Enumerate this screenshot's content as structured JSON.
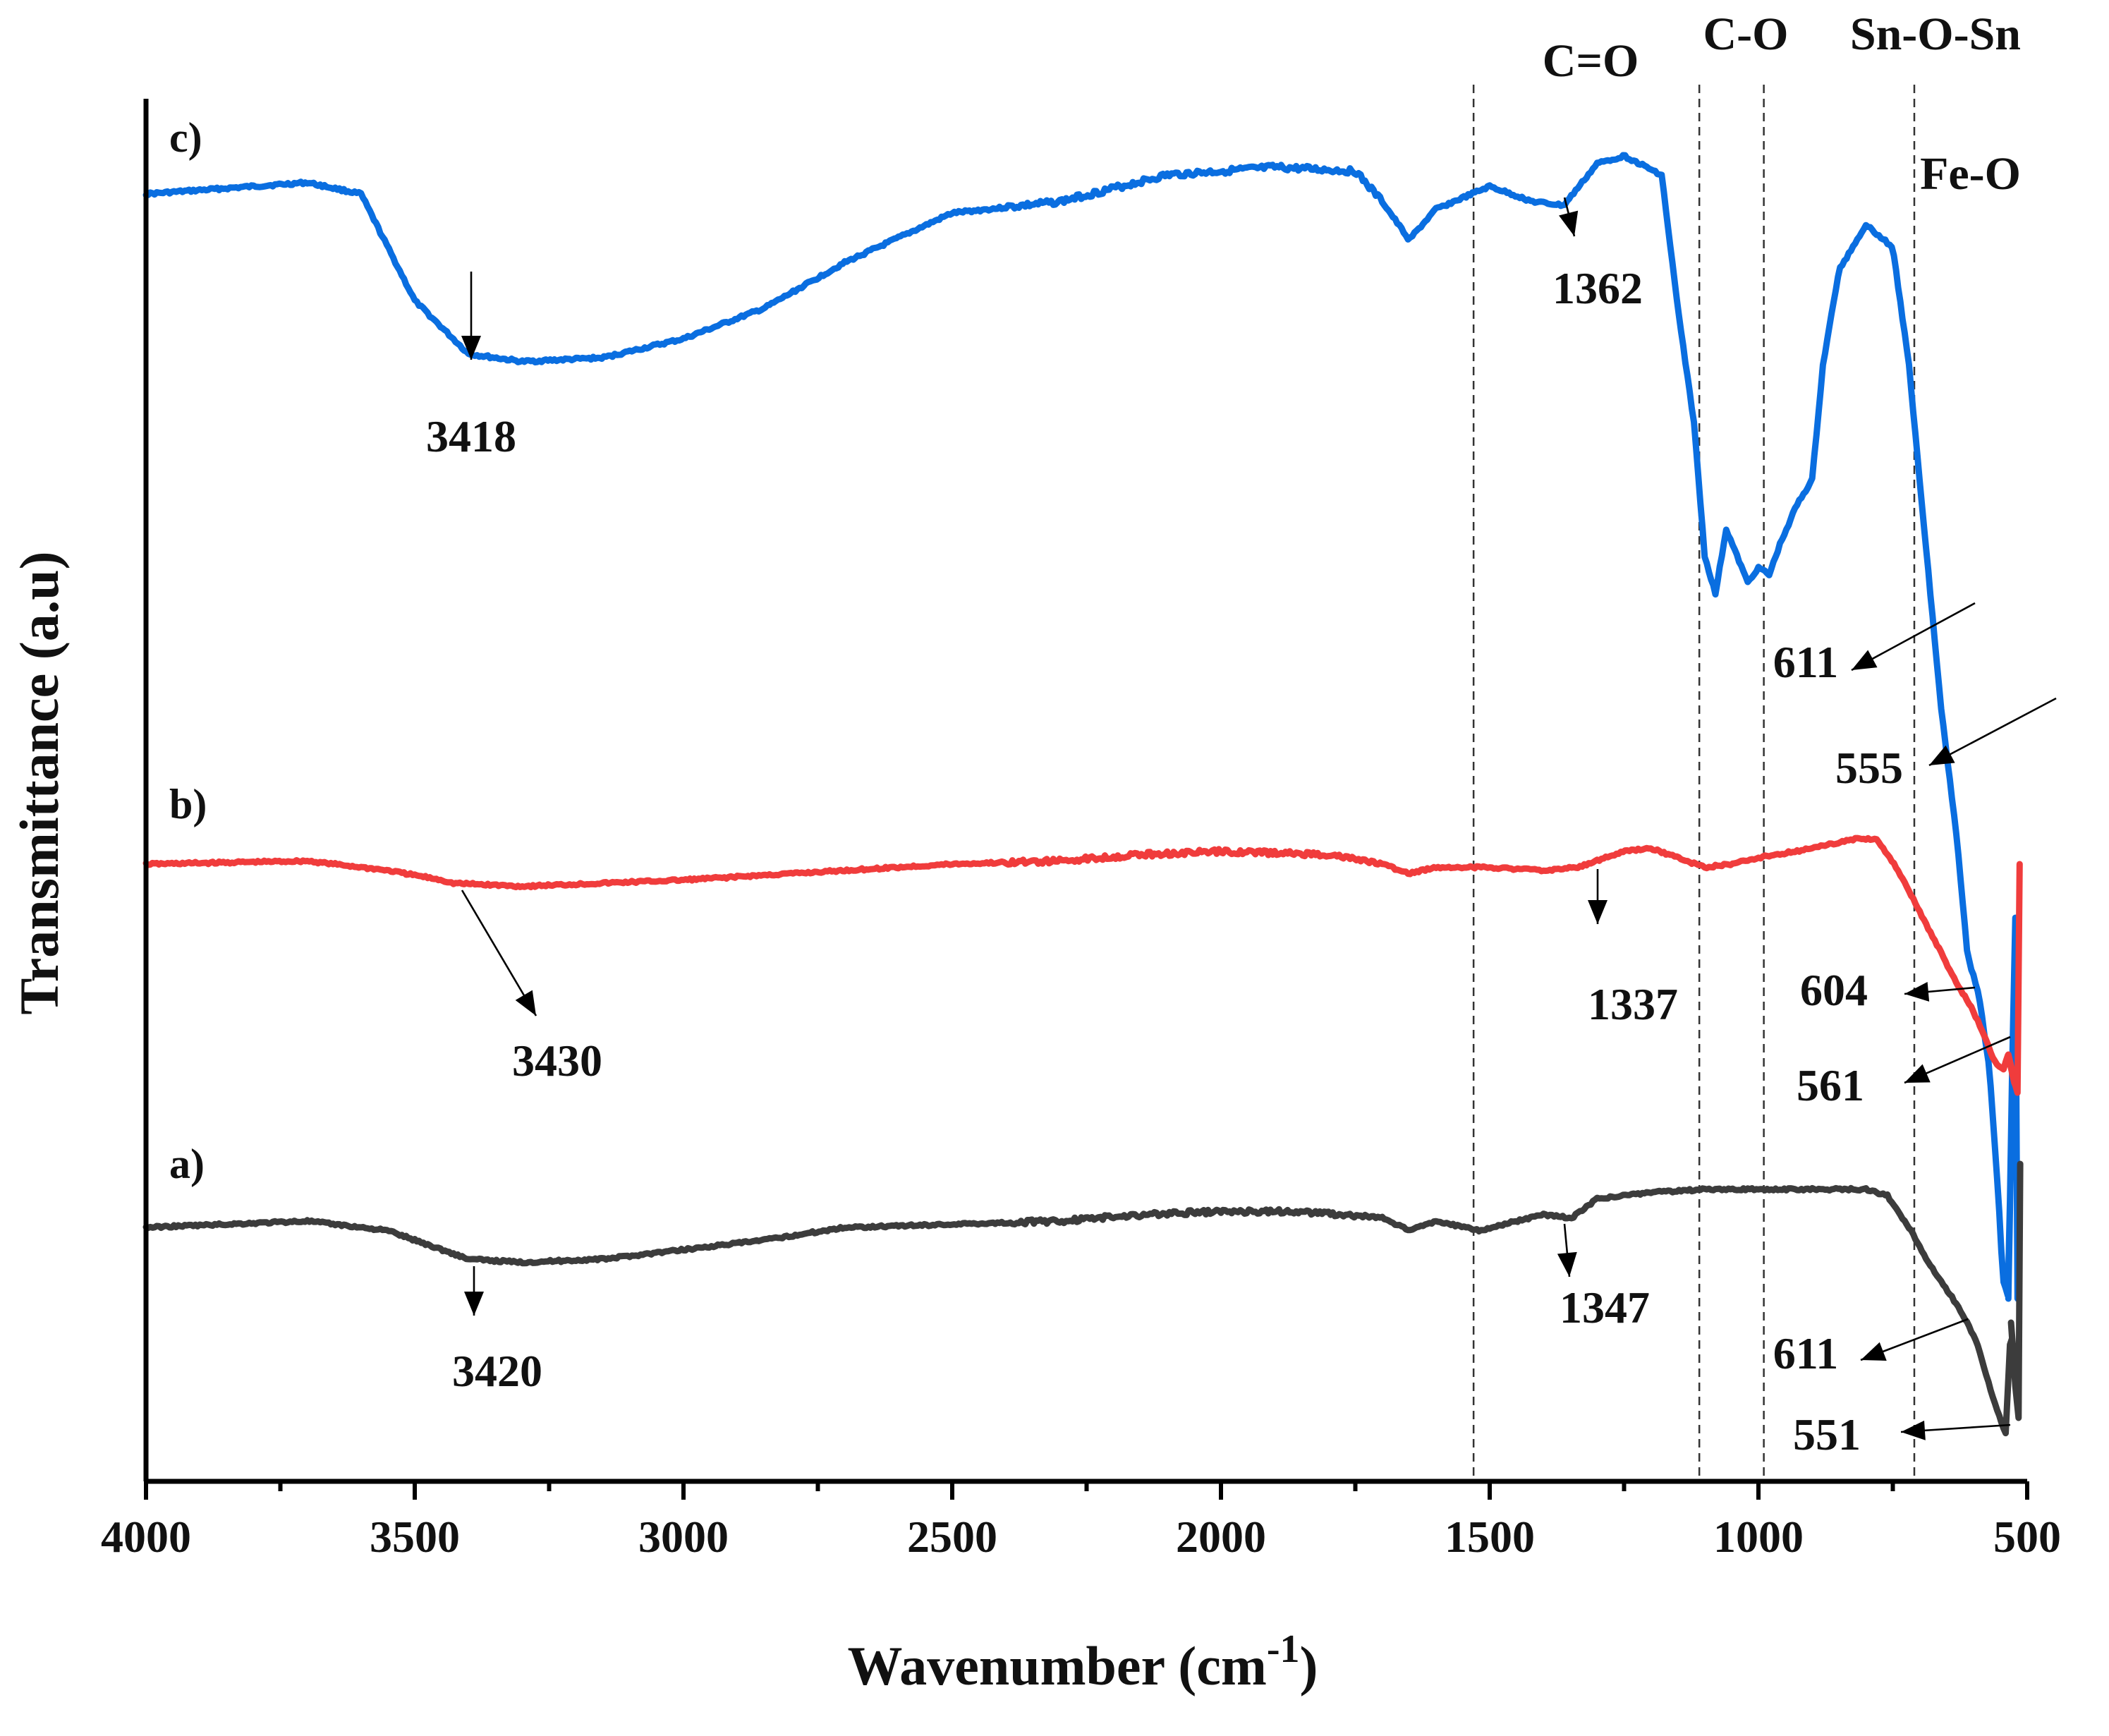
{
  "chart_data": {
    "type": "line",
    "xlabel": "Wavenumber (cm",
    "xlabel_sup": "-1",
    "xlabel_close": ")",
    "ylabel": "Transmittance (a.u)",
    "xlim": [
      4000,
      500
    ],
    "x_ticks": [
      "4000",
      "3500",
      "3000",
      "2500",
      "2000",
      "1500",
      "1000",
      "500"
    ],
    "x_tick_values": [
      4000,
      3500,
      3000,
      2500,
      2000,
      1500,
      1000,
      500
    ],
    "reference_lines": [
      {
        "x": 1530
      },
      {
        "x": 1110
      },
      {
        "x": 990
      },
      {
        "x": 710
      }
    ],
    "bands": [
      {
        "label": "C=O",
        "x": 1300
      },
      {
        "label": "C-O",
        "x": 1050
      },
      {
        "label": "Sn-O-Sn",
        "x": 600
      },
      {
        "label": "Fe-O",
        "x": 600
      }
    ],
    "series": [
      {
        "name": "c)",
        "color": "#0a6ee0",
        "offset": 2,
        "points": [
          [
            4000,
            0
          ],
          [
            3700,
            -0.03
          ],
          [
            3600,
            0
          ],
          [
            3500,
            0.28
          ],
          [
            3400,
            0.42
          ],
          [
            3300,
            0.44
          ],
          [
            3150,
            0.43
          ],
          [
            3000,
            0.38
          ],
          [
            2850,
            0.3
          ],
          [
            2700,
            0.18
          ],
          [
            2500,
            0.05
          ],
          [
            2300,
            0.02
          ],
          [
            2100,
            -0.05
          ],
          [
            1900,
            -0.07
          ],
          [
            1750,
            -0.06
          ],
          [
            1700,
            0.02
          ],
          [
            1650,
            0.12
          ],
          [
            1600,
            0.04
          ],
          [
            1500,
            -0.02
          ],
          [
            1420,
            0.02
          ],
          [
            1362,
            0.03
          ],
          [
            1300,
            -0.08
          ],
          [
            1250,
            -0.1
          ],
          [
            1180,
            -0.05
          ],
          [
            1150,
            0.3
          ],
          [
            1120,
            0.6
          ],
          [
            1100,
            0.95
          ],
          [
            1080,
            1.05
          ],
          [
            1060,
            0.88
          ],
          [
            1040,
            0.95
          ],
          [
            1020,
            1.02
          ],
          [
            1000,
            0.98
          ],
          [
            980,
            1.0
          ],
          [
            960,
            0.92
          ],
          [
            930,
            0.82
          ],
          [
            900,
            0.75
          ],
          [
            880,
            0.45
          ],
          [
            850,
            0.2
          ],
          [
            800,
            0.08
          ],
          [
            750,
            0.14
          ],
          [
            720,
            0.45
          ],
          [
            690,
            0.9
          ],
          [
            660,
            1.35
          ],
          [
            630,
            1.7
          ],
          [
            611,
            2.0
          ],
          [
            590,
            2.1
          ],
          [
            570,
            2.3
          ],
          [
            555,
            2.6
          ],
          [
            545,
            2.85
          ],
          [
            535,
            2.9
          ],
          [
            528,
            2.3
          ],
          [
            522,
            1.9
          ],
          [
            518,
            2.9
          ]
        ]
      },
      {
        "name": "b)",
        "color": "#f03c3c",
        "offset": 1,
        "points": [
          [
            4000,
            0
          ],
          [
            3700,
            -0.01
          ],
          [
            3550,
            0.02
          ],
          [
            3450,
            0.05
          ],
          [
            3430,
            0.06
          ],
          [
            3300,
            0.07
          ],
          [
            3000,
            0.05
          ],
          [
            2700,
            0.02
          ],
          [
            2500,
            0.0
          ],
          [
            2300,
            -0.01
          ],
          [
            2150,
            -0.03
          ],
          [
            2000,
            -0.04
          ],
          [
            1800,
            -0.03
          ],
          [
            1700,
            0.0
          ],
          [
            1650,
            0.03
          ],
          [
            1600,
            0.01
          ],
          [
            1500,
            0.01
          ],
          [
            1400,
            0.02
          ],
          [
            1337,
            0.01
          ],
          [
            1250,
            -0.04
          ],
          [
            1200,
            -0.05
          ],
          [
            1100,
            0.01
          ],
          [
            1050,
            0.0
          ],
          [
            1000,
            -0.02
          ],
          [
            900,
            -0.05
          ],
          [
            820,
            -0.08
          ],
          [
            780,
            -0.08
          ],
          [
            740,
            0.02
          ],
          [
            700,
            0.15
          ],
          [
            660,
            0.28
          ],
          [
            630,
            0.38
          ],
          [
            604,
            0.45
          ],
          [
            585,
            0.52
          ],
          [
            561,
            0.62
          ],
          [
            545,
            0.65
          ],
          [
            535,
            0.6
          ],
          [
            525,
            0.68
          ],
          [
            518,
            0.72
          ],
          [
            514,
            0.0
          ]
        ]
      },
      {
        "name": "a)",
        "color": "#3c3c3c",
        "offset": 0,
        "points": [
          [
            4000,
            0
          ],
          [
            3700,
            -0.02
          ],
          [
            3550,
            0.01
          ],
          [
            3450,
            0.07
          ],
          [
            3400,
            0.1
          ],
          [
            3300,
            0.11
          ],
          [
            3150,
            0.1
          ],
          [
            3000,
            0.07
          ],
          [
            2850,
            0.04
          ],
          [
            2700,
            0.0
          ],
          [
            2500,
            -0.01
          ],
          [
            2300,
            -0.02
          ],
          [
            2150,
            -0.04
          ],
          [
            2000,
            -0.05
          ],
          [
            1850,
            -0.05
          ],
          [
            1700,
            -0.03
          ],
          [
            1650,
            0.01
          ],
          [
            1600,
            -0.02
          ],
          [
            1520,
            0.01
          ],
          [
            1450,
            -0.02
          ],
          [
            1400,
            -0.04
          ],
          [
            1347,
            -0.03
          ],
          [
            1300,
            -0.09
          ],
          [
            1200,
            -0.11
          ],
          [
            1100,
            -0.12
          ],
          [
            1000,
            -0.12
          ],
          [
            900,
            -0.12
          ],
          [
            800,
            -0.12
          ],
          [
            760,
            -0.1
          ],
          [
            720,
            0.0
          ],
          [
            680,
            0.12
          ],
          [
            640,
            0.22
          ],
          [
            611,
            0.3
          ],
          [
            590,
            0.38
          ],
          [
            570,
            0.5
          ],
          [
            551,
            0.6
          ],
          [
            540,
            0.65
          ],
          [
            530,
            0.3
          ],
          [
            522,
            0.5
          ],
          [
            516,
            0.6
          ],
          [
            513,
            -0.2
          ]
        ]
      }
    ],
    "series_labels": [
      "c)",
      "b)",
      "a)"
    ],
    "annotations": [
      {
        "series": "c)",
        "label": "3418",
        "x": 3418
      },
      {
        "series": "c)",
        "label": "1362",
        "x": 1362
      },
      {
        "series": "c)",
        "label": "611",
        "x": 611
      },
      {
        "series": "c)",
        "label": "555",
        "x": 555
      },
      {
        "series": "b)",
        "label": "3430",
        "x": 3430
      },
      {
        "series": "b)",
        "label": "1337",
        "x": 1337
      },
      {
        "series": "b)",
        "label": "604",
        "x": 604
      },
      {
        "series": "b)",
        "label": "561",
        "x": 561
      },
      {
        "series": "a)",
        "label": "3420",
        "x": 3420
      },
      {
        "series": "a)",
        "label": "1347",
        "x": 1347
      },
      {
        "series": "a)",
        "label": "611",
        "x": 611
      },
      {
        "series": "a)",
        "label": "551",
        "x": 551
      }
    ]
  }
}
